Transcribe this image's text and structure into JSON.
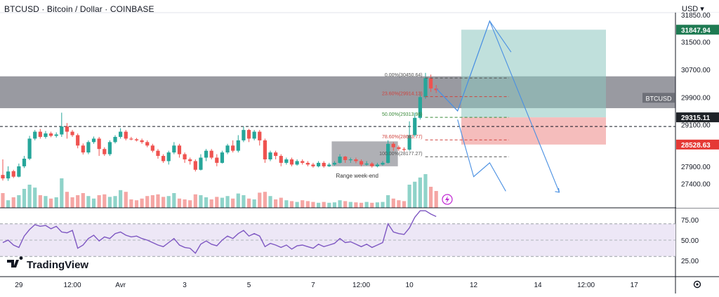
{
  "header": {
    "title": "BTCUSD · Bitcoin / Dollar · COINBASE",
    "currency_label": "USD"
  },
  "watermark": "TradingView",
  "colors": {
    "up": "#26a69a",
    "down": "#ef5350",
    "up_volume": "#8fd3c9",
    "down_volume": "#f5a6a4",
    "rsi_line": "#7e57c2",
    "rsi_band": "#ede7f6",
    "zone": "#7f8189",
    "target_zone": "#8cc7bf",
    "stop_zone": "#f2a7a6",
    "projection": "#4a90e2",
    "range_box": "#8d8f96",
    "fib_0": "#555555",
    "fib_236": "#d0443e",
    "fib_50": "#3a8a3a",
    "fib_786": "#d0443e",
    "fib_100": "#555555"
  },
  "chart_data": {
    "type": "candlestick",
    "symbol": "BTCUSD",
    "price_axis": {
      "ylim": [
        26700,
        32300
      ],
      "ticks": [
        {
          "value": 31500,
          "label": "31500.00"
        },
        {
          "value": 30700,
          "label": "30700.00"
        },
        {
          "value": 29900,
          "label": "29900.00"
        },
        {
          "value": 29100,
          "label": "29100.00"
        },
        {
          "value": 27900,
          "label": "27900.00"
        },
        {
          "value": 27400,
          "label": "27400.00"
        }
      ],
      "top_partial_label": "31850.00",
      "badges": [
        {
          "value": 31847.94,
          "label": "31847.94",
          "kind": "target"
        },
        {
          "value": 29315.11,
          "label": "29315.11",
          "kind": "current"
        },
        {
          "value": 28528.63,
          "label": "28528.63",
          "kind": "stop"
        }
      ],
      "symbol_tag": "BTCUSD",
      "symbol_tag_value": 29880
    },
    "time_axis": {
      "ticks": [
        {
          "label": "29",
          "i": 3
        },
        {
          "label": "12:00",
          "i": 13
        },
        {
          "label": "Avr",
          "i": 22
        },
        {
          "label": "3",
          "i": 34
        },
        {
          "label": "5",
          "i": 46
        },
        {
          "label": "7",
          "i": 58
        },
        {
          "label": "12:00",
          "i": 67
        },
        {
          "label": "10",
          "i": 76
        },
        {
          "label": "12",
          "i": 88
        },
        {
          "label": "14",
          "i": 100
        },
        {
          "label": "12:00",
          "i": 109
        },
        {
          "label": "17",
          "i": 118
        }
      ]
    },
    "candles": [
      [
        27650,
        27550,
        28100,
        27490
      ],
      [
        27550,
        27750,
        27900,
        27480
      ],
      [
        27760,
        27600,
        27800,
        27560
      ],
      [
        27600,
        27900,
        27980,
        27580
      ],
      [
        27900,
        28120,
        28200,
        27850
      ],
      [
        28120,
        28700,
        28780,
        28080
      ],
      [
        28700,
        28900,
        28950,
        28650
      ],
      [
        28900,
        28750,
        28980,
        28700
      ],
      [
        28750,
        28850,
        28920,
        28700
      ],
      [
        28850,
        28780,
        28900,
        28740
      ],
      [
        28780,
        28820,
        28880,
        28730
      ],
      [
        28820,
        29050,
        29450,
        28750
      ],
      [
        29050,
        28900,
        29150,
        28700
      ],
      [
        28900,
        28800,
        28950,
        28750
      ],
      [
        28800,
        28500,
        28850,
        28420
      ],
      [
        28500,
        28300,
        28560,
        28240
      ],
      [
        28300,
        28600,
        28650,
        28250
      ],
      [
        28600,
        28700,
        28760,
        28550
      ],
      [
        28700,
        28400,
        28750,
        28200
      ],
      [
        28400,
        28250,
        28450,
        28200
      ],
      [
        28250,
        28600,
        28650,
        28200
      ],
      [
        28600,
        28750,
        28800,
        28560
      ],
      [
        28750,
        28900,
        29000,
        28700
      ],
      [
        28900,
        28700,
        28950,
        28650
      ],
      [
        28700,
        28680,
        28750,
        28650
      ],
      [
        28680,
        28650,
        28720,
        28620
      ],
      [
        28650,
        28600,
        28700,
        28550
      ],
      [
        28600,
        28500,
        28650,
        28450
      ],
      [
        28500,
        28350,
        28550,
        28300
      ],
      [
        28350,
        28200,
        28400,
        28120
      ],
      [
        28200,
        28050,
        28250,
        28000
      ],
      [
        28050,
        28300,
        28350,
        27950
      ],
      [
        28300,
        28500,
        28600,
        28250
      ],
      [
        28500,
        28250,
        28550,
        28150
      ],
      [
        28250,
        28100,
        28300,
        28000
      ],
      [
        28100,
        28050,
        28150,
        27950
      ],
      [
        28050,
        27800,
        28100,
        27750
      ],
      [
        27800,
        28150,
        28250,
        27780
      ],
      [
        28150,
        28350,
        28400,
        28050
      ],
      [
        28350,
        28150,
        28400,
        28100
      ],
      [
        28150,
        28000,
        28250,
        27900
      ],
      [
        28000,
        28300,
        28350,
        27980
      ],
      [
        28300,
        28500,
        28550,
        28250
      ],
      [
        28500,
        28350,
        28650,
        28300
      ],
      [
        28350,
        28650,
        28800,
        28300
      ],
      [
        28650,
        28950,
        29050,
        28600
      ],
      [
        28950,
        28700,
        28980,
        28600
      ],
      [
        28700,
        28900,
        28950,
        28650
      ],
      [
        28900,
        28650,
        28950,
        28500
      ],
      [
        28650,
        28100,
        28700,
        28000
      ],
      [
        28100,
        28300,
        28350,
        28050
      ],
      [
        28300,
        28200,
        28350,
        28100
      ],
      [
        28200,
        28000,
        28250,
        27900
      ],
      [
        28000,
        28100,
        28150,
        27950
      ],
      [
        28100,
        27950,
        28150,
        27900
      ],
      [
        27950,
        28050,
        28100,
        27920
      ],
      [
        28050,
        28000,
        28100,
        27950
      ],
      [
        28000,
        27950,
        28050,
        27900
      ],
      [
        27950,
        27900,
        28000,
        27860
      ],
      [
        27900,
        28000,
        28050,
        27870
      ],
      [
        28000,
        27900,
        28050,
        27860
      ],
      [
        27900,
        27950,
        28000,
        27880
      ],
      [
        27950,
        28000,
        28050,
        27920
      ],
      [
        28000,
        28180,
        28250,
        27980
      ],
      [
        28180,
        28080,
        28200,
        28000
      ],
      [
        28080,
        28100,
        28150,
        28000
      ],
      [
        28100,
        28050,
        28150,
        27990
      ],
      [
        28050,
        27950,
        28100,
        27900
      ],
      [
        27950,
        27980,
        28050,
        27920
      ],
      [
        27980,
        27900,
        28020,
        27860
      ],
      [
        27900,
        27950,
        28000,
        27870
      ],
      [
        27950,
        28000,
        28050,
        27920
      ],
      [
        28000,
        28550,
        28650,
        27980
      ],
      [
        28550,
        28450,
        28600,
        28350
      ],
      [
        28450,
        28400,
        28500,
        28350
      ],
      [
        28400,
        28380,
        28450,
        28330
      ],
      [
        28380,
        28800,
        29200,
        28350
      ],
      [
        28800,
        29300,
        29450,
        28750
      ],
      [
        29300,
        29900,
        30050,
        29250
      ],
      [
        29900,
        30450,
        30600,
        29850
      ],
      [
        30450,
        30150,
        30550,
        30050
      ],
      [
        30150,
        30100,
        30250,
        30020
      ]
    ],
    "volumes": [
      0.35,
      0.18,
      0.25,
      0.3,
      0.45,
      0.55,
      0.48,
      0.3,
      0.28,
      0.22,
      0.25,
      0.7,
      0.38,
      0.25,
      0.3,
      0.35,
      0.28,
      0.22,
      0.3,
      0.32,
      0.26,
      0.28,
      0.42,
      0.38,
      0.2,
      0.18,
      0.22,
      0.28,
      0.3,
      0.32,
      0.26,
      0.28,
      0.35,
      0.22,
      0.2,
      0.18,
      0.32,
      0.3,
      0.25,
      0.2,
      0.26,
      0.24,
      0.28,
      0.22,
      0.34,
      0.3,
      0.22,
      0.2,
      0.36,
      0.38,
      0.28,
      0.2,
      0.24,
      0.18,
      0.16,
      0.14,
      0.18,
      0.16,
      0.14,
      0.12,
      0.14,
      0.12,
      0.13,
      0.18,
      0.16,
      0.14,
      0.13,
      0.12,
      0.14,
      0.12,
      0.13,
      0.14,
      0.3,
      0.22,
      0.18,
      0.16,
      0.55,
      0.62,
      0.72,
      0.8,
      0.5,
      0.4
    ],
    "fibonacci": [
      {
        "label": "0.00%(30450.64)",
        "value": 30450.64,
        "kind": "fib_0"
      },
      {
        "label": "23.60%(29914.13)",
        "value": 29914.13,
        "kind": "fib_236"
      },
      {
        "label": "50.00%(29313.96)",
        "value": 29313.96,
        "kind": "fib_50"
      },
      {
        "label": "78.60%(28663.77)",
        "value": 28663.77,
        "kind": "fib_786"
      },
      {
        "label": "100.00%(28177.27)",
        "value": 28177.27,
        "kind": "fib_100"
      }
    ],
    "resistance_zone": {
      "from": 29580,
      "to": 30500
    },
    "dashed_level": 29050,
    "position": {
      "entry": 29315.11,
      "target": 31847.94,
      "stop": 28528.63
    },
    "range_box": {
      "label": "Range week-end",
      "from": 27900,
      "to": 28420,
      "i_start": 62,
      "i_end": 72
    },
    "projection_path": [
      [
        81,
        30150
      ],
      [
        85,
        29500
      ],
      [
        91,
        32100
      ],
      [
        95,
        31200
      ]
    ],
    "projection_path_2": [
      [
        81,
        30150
      ],
      [
        85,
        29500
      ],
      [
        91,
        32100
      ],
      [
        104,
        27150
      ]
    ],
    "projection_path_3": [
      [
        85,
        29250
      ],
      [
        88,
        27600
      ],
      [
        91,
        28000
      ],
      [
        94,
        27180
      ]
    ],
    "rsi": {
      "ticks": [
        {
          "value": 75,
          "label": "75.00"
        },
        {
          "value": 50,
          "label": "50.00"
        },
        {
          "value": 25,
          "label": "25.00"
        }
      ],
      "band": [
        30,
        70
      ],
      "values": [
        47,
        50,
        44,
        41,
        55,
        63,
        69,
        67,
        68,
        64,
        67,
        60,
        59,
        62,
        40,
        44,
        52,
        56,
        49,
        54,
        52,
        58,
        60,
        56,
        54,
        55,
        52,
        50,
        47,
        44,
        42,
        47,
        52,
        44,
        41,
        40,
        34,
        45,
        49,
        45,
        43,
        50,
        55,
        52,
        58,
        62,
        55,
        58,
        55,
        42,
        46,
        44,
        41,
        44,
        39,
        43,
        44,
        42,
        40,
        45,
        42,
        44,
        46,
        52,
        47,
        48,
        45,
        42,
        45,
        41,
        44,
        47,
        70,
        60,
        58,
        57,
        65,
        78,
        86,
        86,
        82,
        79
      ]
    }
  }
}
